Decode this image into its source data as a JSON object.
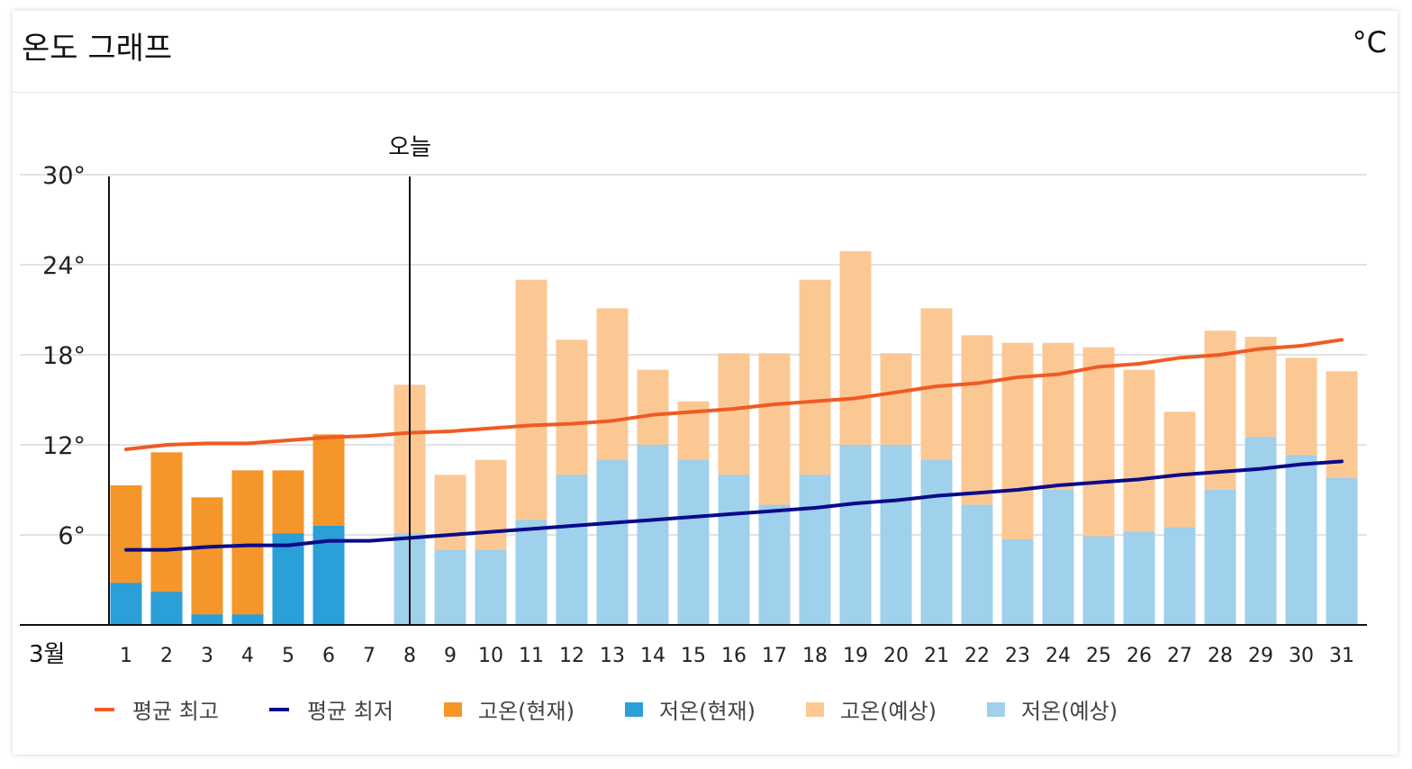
{
  "header": {
    "title": "온도 그래프",
    "unit": "°C"
  },
  "colors": {
    "avg_high": "#f05a22",
    "avg_low": "#0a0a8a",
    "high_current": "#f5962a",
    "low_current": "#2a9fd8",
    "high_forecast": "#fbc894",
    "low_forecast": "#9fd0ec"
  },
  "chart_data": {
    "type": "bar",
    "title": "온도 그래프",
    "month_label": "3월",
    "today_label": "오늘",
    "today_day": 8,
    "ylim": [
      0,
      30
    ],
    "yticks": [
      6,
      12,
      18,
      24,
      30
    ],
    "ytick_labels": [
      "6°",
      "12°",
      "18°",
      "24°",
      "30°"
    ],
    "categories": [
      "1",
      "2",
      "3",
      "4",
      "5",
      "6",
      "7",
      "8",
      "9",
      "10",
      "11",
      "12",
      "13",
      "14",
      "15",
      "16",
      "17",
      "18",
      "19",
      "20",
      "21",
      "22",
      "23",
      "24",
      "25",
      "26",
      "27",
      "28",
      "29",
      "30",
      "31"
    ],
    "series": [
      {
        "name": "고온(현재)",
        "values": [
          9.3,
          11.5,
          8.5,
          10.3,
          10.3,
          12.7,
          null,
          null,
          null,
          null,
          null,
          null,
          null,
          null,
          null,
          null,
          null,
          null,
          null,
          null,
          null,
          null,
          null,
          null,
          null,
          null,
          null,
          null,
          null,
          null,
          null
        ]
      },
      {
        "name": "저온(현재)",
        "values": [
          2.8,
          2.2,
          0.7,
          0.7,
          6.1,
          6.6,
          null,
          null,
          null,
          null,
          null,
          null,
          null,
          null,
          null,
          null,
          null,
          null,
          null,
          null,
          null,
          null,
          null,
          null,
          null,
          null,
          null,
          null,
          null,
          null,
          null
        ]
      },
      {
        "name": "고온(예상)",
        "values": [
          null,
          null,
          null,
          null,
          null,
          null,
          null,
          16,
          10,
          11,
          23,
          19,
          21.1,
          17,
          14.9,
          18.1,
          18.1,
          23,
          24.9,
          18.1,
          21.1,
          19.3,
          18.8,
          18.8,
          18.5,
          17,
          14.2,
          19.6,
          19.2,
          17.8,
          16.9
        ]
      },
      {
        "name": "저온(예상)",
        "values": [
          null,
          null,
          null,
          null,
          null,
          null,
          null,
          6.1,
          5,
          5,
          7,
          10,
          11,
          12,
          11,
          10,
          8,
          10,
          12,
          12,
          11,
          8,
          5.7,
          9,
          5.9,
          6.2,
          6.5,
          9,
          12.5,
          11.3,
          9.8
        ]
      },
      {
        "name": "평균 최고",
        "values": [
          11.7,
          12,
          12.1,
          12.1,
          12.3,
          12.5,
          12.6,
          12.8,
          12.9,
          13.1,
          13.3,
          13.4,
          13.6,
          14,
          14.2,
          14.4,
          14.7,
          14.9,
          15.1,
          15.5,
          15.9,
          16.1,
          16.5,
          16.7,
          17.2,
          17.4,
          17.8,
          18,
          18.4,
          18.6,
          19
        ]
      },
      {
        "name": "평균 최저",
        "values": [
          5,
          5,
          5.2,
          5.3,
          5.3,
          5.6,
          5.6,
          5.8,
          6,
          6.2,
          6.4,
          6.6,
          6.8,
          7,
          7.2,
          7.4,
          7.6,
          7.8,
          8.1,
          8.3,
          8.6,
          8.8,
          9,
          9.3,
          9.5,
          9.7,
          10,
          10.2,
          10.4,
          10.7,
          10.9
        ]
      }
    ],
    "legend": [
      "평균 최고",
      "평균 최저",
      "고온(현재)",
      "저온(현재)",
      "고온(예상)",
      "저온(예상)"
    ],
    "legend_position": "bottom"
  }
}
